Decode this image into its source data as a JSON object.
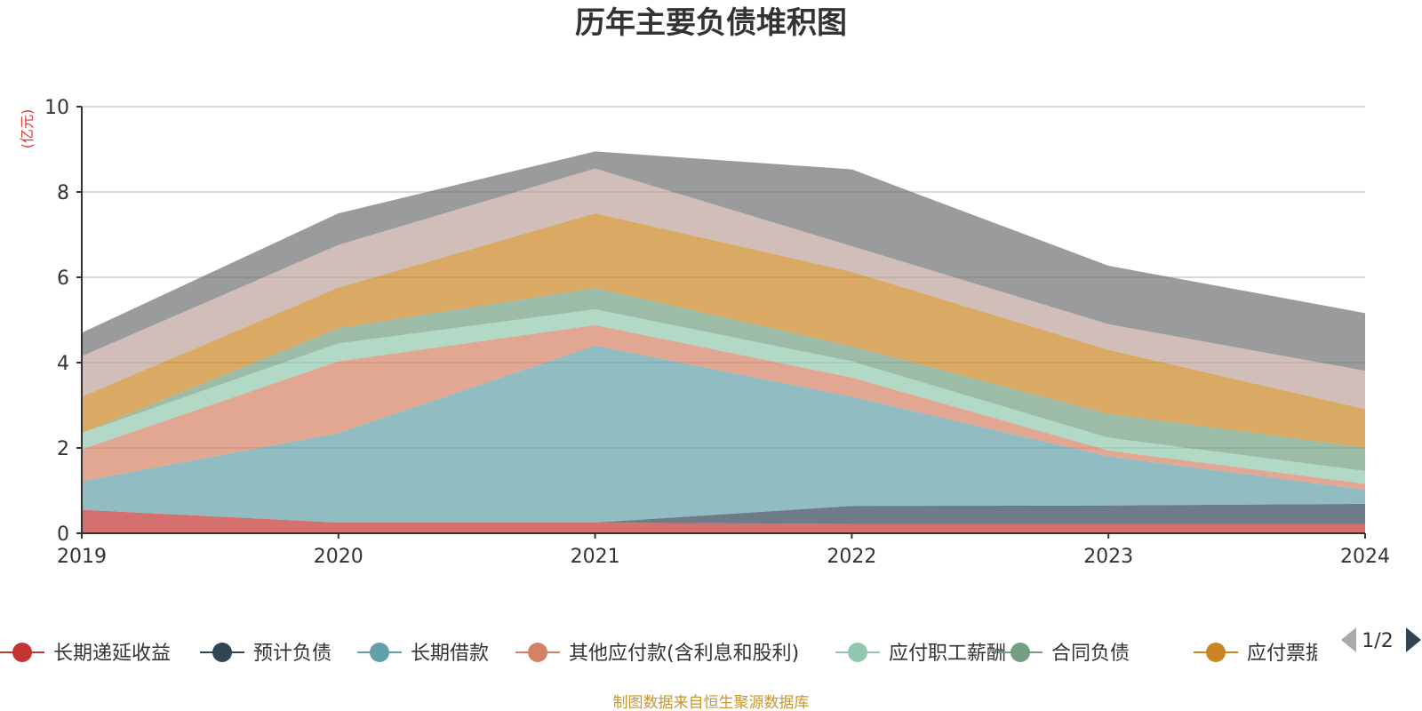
{
  "chart_data": {
    "type": "area",
    "stacked": true,
    "title": "历年主要负债堆积图",
    "unit_label": "(亿元)",
    "x": [
      "2019",
      "2020",
      "2021",
      "2022",
      "2023",
      "2024"
    ],
    "ylim": [
      0,
      10
    ],
    "yticks": [
      0,
      2,
      4,
      6,
      8,
      10
    ],
    "grid": true,
    "series": [
      {
        "name": "长期递延收益",
        "color": "#c23531",
        "values": [
          0.55,
          0.25,
          0.25,
          0.22,
          0.22,
          0.22
        ]
      },
      {
        "name": "预计负债",
        "color": "#2f4554",
        "values": [
          0.0,
          0.0,
          0.0,
          0.42,
          0.43,
          0.47
        ]
      },
      {
        "name": "长期借款",
        "color": "#61a0a8",
        "values": [
          0.67,
          2.1,
          4.15,
          2.56,
          1.15,
          0.33
        ]
      },
      {
        "name": "其他应付款(含利息和股利)",
        "color": "#d48265",
        "values": [
          0.75,
          1.68,
          0.48,
          0.45,
          0.14,
          0.14
        ]
      },
      {
        "name": "应付职工薪酬",
        "color": "#91c7ae",
        "values": [
          0.38,
          0.42,
          0.37,
          0.38,
          0.3,
          0.3
        ]
      },
      {
        "name": "合同负债",
        "color": "#749f83",
        "values": [
          0.0,
          0.36,
          0.5,
          0.35,
          0.56,
          0.55
        ]
      },
      {
        "name": "应付票据",
        "color": "#ca8622",
        "values": [
          0.85,
          0.95,
          1.75,
          1.75,
          1.5,
          0.9
        ]
      },
      {
        "name": "",
        "color": "#bda29a",
        "values": [
          0.95,
          1.0,
          1.05,
          0.6,
          0.6,
          0.9
        ]
      },
      {
        "name": "",
        "color": "#6e7074",
        "values": [
          0.55,
          0.74,
          0.4,
          1.8,
          1.37,
          1.35
        ]
      }
    ],
    "legend": {
      "position": "bottom",
      "visible_items": [
        "长期递延收益",
        "预计负债",
        "长期借款",
        "其他应付款(含利息和股利)",
        "应付职工薪酬",
        "合同负债",
        "应付票据"
      ],
      "page": "1/2"
    },
    "source": "制图数据来自恒生聚源数据库"
  }
}
